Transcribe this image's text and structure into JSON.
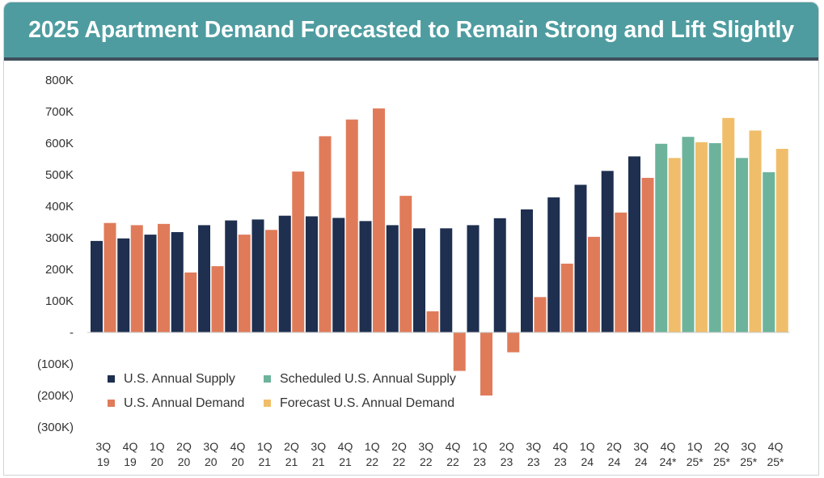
{
  "header": {
    "title": "2025 Apartment Demand Forecasted to Remain Strong and Lift Slightly"
  },
  "chart_data": {
    "type": "bar",
    "title": "2025 Apartment Demand Forecasted to Remain Strong and Lift Slightly",
    "categories": [
      [
        "3Q",
        "19"
      ],
      [
        "4Q",
        "19"
      ],
      [
        "1Q",
        "20"
      ],
      [
        "2Q",
        "20"
      ],
      [
        "3Q",
        "20"
      ],
      [
        "4Q",
        "20"
      ],
      [
        "1Q",
        "21"
      ],
      [
        "2Q",
        "21"
      ],
      [
        "3Q",
        "21"
      ],
      [
        "4Q",
        "21"
      ],
      [
        "1Q",
        "22"
      ],
      [
        "2Q",
        "22"
      ],
      [
        "3Q",
        "22"
      ],
      [
        "4Q",
        "22"
      ],
      [
        "1Q",
        "23"
      ],
      [
        "2Q",
        "23"
      ],
      [
        "3Q",
        "23"
      ],
      [
        "4Q",
        "23"
      ],
      [
        "1Q",
        "24"
      ],
      [
        "2Q",
        "24"
      ],
      [
        "3Q",
        "24"
      ],
      [
        "4Q",
        "24*"
      ],
      [
        "1Q",
        "25*"
      ],
      [
        "2Q",
        "25*"
      ],
      [
        "3Q",
        "25*"
      ],
      [
        "4Q",
        "25*"
      ]
    ],
    "ylim": [
      -300000,
      800000
    ],
    "yticks": [
      {
        "value": 800000,
        "label": "800K"
      },
      {
        "value": 700000,
        "label": "700K"
      },
      {
        "value": 600000,
        "label": "600K"
      },
      {
        "value": 500000,
        "label": "500K"
      },
      {
        "value": 400000,
        "label": "400K"
      },
      {
        "value": 300000,
        "label": "300K"
      },
      {
        "value": 200000,
        "label": "200K"
      },
      {
        "value": 100000,
        "label": "100K"
      },
      {
        "value": 0,
        "label": "-"
      },
      {
        "value": -100000,
        "label": "(100K)"
      },
      {
        "value": -200000,
        "label": "(200K)"
      },
      {
        "value": -300000,
        "label": "(300K)"
      }
    ],
    "grid": false,
    "legend_position": "bottom-left",
    "series": [
      {
        "name": "U.S. Annual Supply",
        "color": "#1e2f4f",
        "values": [
          290000,
          298000,
          310000,
          318000,
          340000,
          355000,
          358000,
          370000,
          368000,
          363000,
          353000,
          340000,
          330000,
          330000,
          340000,
          362000,
          390000,
          428000,
          468000,
          512000,
          558000,
          null,
          null,
          null,
          null,
          null
        ]
      },
      {
        "name": "U.S. Annual Demand",
        "color": "#e07b5a",
        "values": [
          347000,
          340000,
          344000,
          190000,
          210000,
          310000,
          325000,
          510000,
          622000,
          675000,
          710000,
          433000,
          67000,
          -122000,
          -200000,
          -63000,
          112000,
          218000,
          303000,
          380000,
          490000,
          null,
          null,
          null,
          null,
          null
        ]
      },
      {
        "name": "Scheduled U.S. Annual Supply",
        "color": "#6db39c",
        "values": [
          null,
          null,
          null,
          null,
          null,
          null,
          null,
          null,
          null,
          null,
          null,
          null,
          null,
          null,
          null,
          null,
          null,
          null,
          null,
          null,
          null,
          598000,
          620000,
          600000,
          553000,
          508000
        ]
      },
      {
        "name": "Forecast U.S. Annual Demand",
        "color": "#f0be6a",
        "values": [
          null,
          null,
          null,
          null,
          null,
          null,
          null,
          null,
          null,
          null,
          null,
          null,
          null,
          null,
          null,
          null,
          null,
          null,
          null,
          null,
          null,
          553000,
          603000,
          680000,
          640000,
          582000
        ]
      }
    ],
    "legend": [
      {
        "label": "U.S. Annual Supply",
        "color": "#1e2f4f"
      },
      {
        "label": "Scheduled U.S. Annual Supply",
        "color": "#6db39c"
      },
      {
        "label": "U.S. Annual Demand",
        "color": "#e07b5a"
      },
      {
        "label": "Forecast U.S. Annual Demand",
        "color": "#f0be6a"
      }
    ]
  }
}
